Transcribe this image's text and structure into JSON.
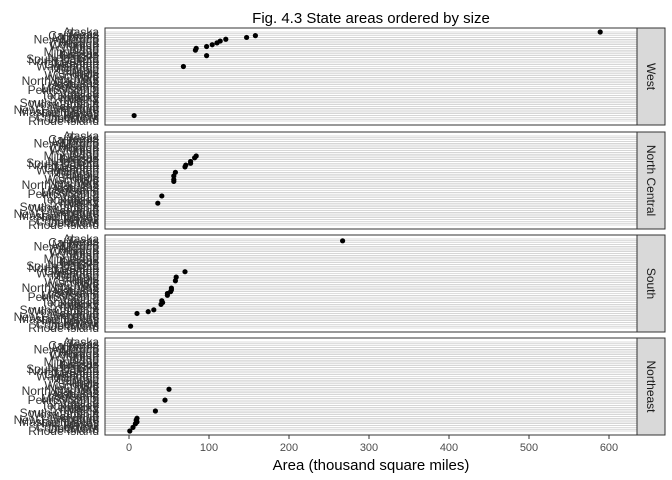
{
  "chart_data": {
    "type": "scatter",
    "title": "Fig. 4.3 State areas ordered by size",
    "xlabel": "Area (thousand square miles)",
    "ylabel": "",
    "xlim": [
      -30,
      635
    ],
    "x_ticks": [
      0,
      100,
      200,
      300,
      400,
      500,
      600
    ],
    "grid": true,
    "facets": [
      "West",
      "North Central",
      "South",
      "Northeast"
    ],
    "states": [
      "Rhode Island",
      "Delaware",
      "Connecticut",
      "Hawaii",
      "New Jersey",
      "Massachusetts",
      "New Hampshire",
      "Vermont",
      "Maryland",
      "West Virginia",
      "South Carolina",
      "Maine",
      "Indiana",
      "Kentucky",
      "Tennessee",
      "Virginia",
      "Ohio",
      "Pennsylvania",
      "Mississippi",
      "Louisiana",
      "Alabama",
      "Arkansas",
      "North Carolina",
      "New York",
      "Iowa",
      "Wisconsin",
      "Florida",
      "Illinois",
      "Georgia",
      "Michigan",
      "Washington",
      "Oklahoma",
      "Missouri",
      "North Dakota",
      "South Dakota",
      "Nebraska",
      "Oregon",
      "Kansas",
      "Minnesota",
      "Idaho",
      "Utah",
      "Wyoming",
      "Colorado",
      "Nevada",
      "Arizona",
      "New Mexico",
      "Montana",
      "California",
      "Texas",
      "Alaska"
    ],
    "series": [
      {
        "name": "West",
        "points": [
          {
            "state": "Hawaii",
            "x": 6.4
          },
          {
            "state": "Washington",
            "x": 68
          },
          {
            "state": "Oregon",
            "x": 97
          },
          {
            "state": "Idaho",
            "x": 83
          },
          {
            "state": "Utah",
            "x": 84
          },
          {
            "state": "Wyoming",
            "x": 97
          },
          {
            "state": "Colorado",
            "x": 104
          },
          {
            "state": "Nevada",
            "x": 110
          },
          {
            "state": "Arizona",
            "x": 114
          },
          {
            "state": "New Mexico",
            "x": 121
          },
          {
            "state": "Montana",
            "x": 147
          },
          {
            "state": "California",
            "x": 158
          },
          {
            "state": "Alaska",
            "x": 589
          }
        ]
      },
      {
        "name": "North Central",
        "points": [
          {
            "state": "Indiana",
            "x": 36
          },
          {
            "state": "Ohio",
            "x": 41
          },
          {
            "state": "Iowa",
            "x": 56
          },
          {
            "state": "Wisconsin",
            "x": 56
          },
          {
            "state": "Illinois",
            "x": 56
          },
          {
            "state": "Michigan",
            "x": 58
          },
          {
            "state": "Missouri",
            "x": 70
          },
          {
            "state": "North Dakota",
            "x": 71
          },
          {
            "state": "South Dakota",
            "x": 77
          },
          {
            "state": "Nebraska",
            "x": 77
          },
          {
            "state": "Kansas",
            "x": 82
          },
          {
            "state": "Minnesota",
            "x": 84
          }
        ]
      },
      {
        "name": "South",
        "points": [
          {
            "state": "Delaware",
            "x": 2
          },
          {
            "state": "Maryland",
            "x": 10
          },
          {
            "state": "West Virginia",
            "x": 24
          },
          {
            "state": "South Carolina",
            "x": 31
          },
          {
            "state": "Kentucky",
            "x": 40
          },
          {
            "state": "Tennessee",
            "x": 42
          },
          {
            "state": "Virginia",
            "x": 41
          },
          {
            "state": "Mississippi",
            "x": 48
          },
          {
            "state": "Louisiana",
            "x": 48
          },
          {
            "state": "Alabama",
            "x": 52
          },
          {
            "state": "Arkansas",
            "x": 53
          },
          {
            "state": "North Carolina",
            "x": 53
          },
          {
            "state": "Florida",
            "x": 58
          },
          {
            "state": "Georgia",
            "x": 59
          },
          {
            "state": "Oklahoma",
            "x": 70
          },
          {
            "state": "Texas",
            "x": 267
          }
        ]
      },
      {
        "name": "Northeast",
        "points": [
          {
            "state": "Rhode Island",
            "x": 1
          },
          {
            "state": "Connecticut",
            "x": 5
          },
          {
            "state": "New Jersey",
            "x": 8
          },
          {
            "state": "Massachusetts",
            "x": 10
          },
          {
            "state": "New Hampshire",
            "x": 9
          },
          {
            "state": "Vermont",
            "x": 10
          },
          {
            "state": "Maine",
            "x": 33
          },
          {
            "state": "Pennsylvania",
            "x": 45
          },
          {
            "state": "New York",
            "x": 50
          }
        ]
      }
    ]
  }
}
